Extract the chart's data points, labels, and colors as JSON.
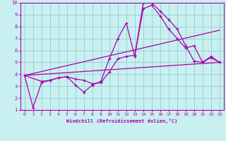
{
  "xlabel": "Windchill (Refroidissement éolien,°C)",
  "xlim": [
    -0.5,
    23.5
  ],
  "ylim": [
    1,
    10
  ],
  "xticks": [
    0,
    1,
    2,
    3,
    4,
    5,
    6,
    7,
    8,
    9,
    10,
    11,
    12,
    13,
    14,
    15,
    16,
    17,
    18,
    19,
    20,
    21,
    22,
    23
  ],
  "yticks": [
    1,
    2,
    3,
    4,
    5,
    6,
    7,
    8,
    9,
    10
  ],
  "background_color": "#c8f0f0",
  "grid_color": "#99cccc",
  "line_color": "#aa00aa",
  "line1_x": [
    0,
    1,
    2,
    3,
    4,
    5,
    6,
    7,
    8,
    9,
    10,
    11,
    12,
    13,
    14,
    15,
    16,
    17,
    18,
    19,
    20,
    21,
    22,
    23
  ],
  "line1_y": [
    3.9,
    1.2,
    3.3,
    3.5,
    3.7,
    3.8,
    3.1,
    2.5,
    3.1,
    3.4,
    5.3,
    7.0,
    8.3,
    5.5,
    10.0,
    10.0,
    9.3,
    8.6,
    7.8,
    6.4,
    5.1,
    5.0,
    5.4,
    5.0
  ],
  "line2_x": [
    0,
    2,
    3,
    4,
    5,
    6,
    7,
    8,
    9,
    10,
    11,
    12,
    13,
    14,
    15,
    16,
    17,
    18,
    19,
    20,
    21,
    22,
    23
  ],
  "line2_y": [
    3.9,
    3.4,
    3.5,
    3.7,
    3.8,
    3.6,
    3.5,
    3.2,
    3.3,
    4.2,
    5.3,
    5.5,
    5.6,
    9.5,
    9.8,
    8.9,
    7.8,
    7.0,
    6.2,
    6.4,
    5.0,
    5.5,
    5.0
  ],
  "line3_x": [
    0,
    23
  ],
  "line3_y": [
    3.9,
    7.7
  ],
  "line4_x": [
    0,
    23
  ],
  "line4_y": [
    3.9,
    5.0
  ]
}
